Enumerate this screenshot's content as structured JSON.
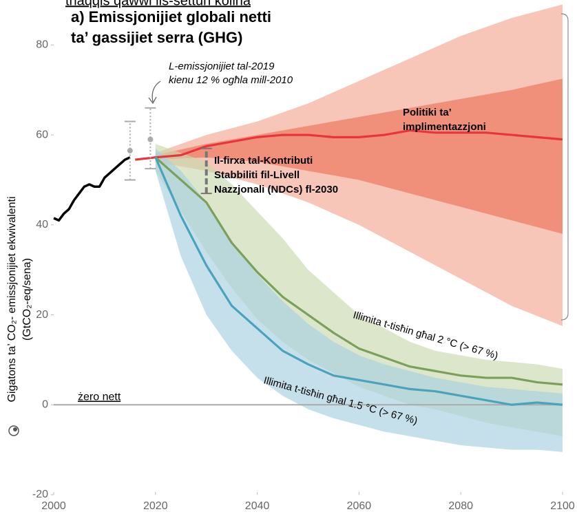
{
  "chart_data": {
    "type": "line",
    "supertitle": "thaqqis qawwi lis-settun kollha",
    "title": [
      "a) Emissjonijiet globali netti",
      "ta’ gassijiet serra (GHG)"
    ],
    "ylabel": [
      "Gigatons ta’ CO₂- emissjonijiet ekwivalenti",
      "(GtCO₂-eq/sena)"
    ],
    "xlim": [
      2000,
      2100
    ],
    "ylim": [
      -20,
      90
    ],
    "xticks": [
      2000,
      2020,
      2040,
      2060,
      2080,
      2100
    ],
    "yticks": [
      -20,
      0,
      20,
      40,
      60,
      80
    ],
    "hline": {
      "value": 0,
      "label": "żero nett",
      "color": "#aaaaaa"
    },
    "bands": [
      {
        "color": "#f6c0b0",
        "x": [
          2020,
          2030,
          2040,
          2050,
          2060,
          2070,
          2080,
          2090,
          2100
        ],
        "lower": [
          54,
          52,
          49,
          45,
          40,
          34,
          28,
          22,
          17.5
        ],
        "upper": [
          56,
          60,
          63,
          67,
          72,
          77,
          82,
          86,
          89
        ]
      },
      {
        "color": "#ef8a73",
        "x": [
          2020,
          2030,
          2040,
          2050,
          2060,
          2070,
          2080,
          2090,
          2100
        ],
        "lower": [
          54.5,
          55,
          54,
          52,
          50,
          47,
          44,
          41,
          38
        ],
        "upper": [
          55.5,
          58,
          60,
          62,
          64,
          66,
          68,
          70,
          72.5
        ]
      },
      {
        "color": "#c9d9ae",
        "x": [
          2020,
          2025,
          2030,
          2035,
          2040,
          2045,
          2050,
          2055,
          2060,
          2065,
          2070,
          2075,
          2080,
          2085,
          2090,
          2095,
          2100
        ],
        "lower": [
          52,
          43,
          34,
          26,
          19,
          14,
          10,
          7,
          4,
          2,
          0,
          -1,
          -2.5,
          -4,
          -5,
          -6,
          -7
        ],
        "upper": [
          58,
          56,
          54,
          49,
          43,
          37,
          30,
          25,
          20,
          17,
          14,
          12,
          11,
          10,
          9.5,
          9,
          8
        ]
      },
      {
        "color": "#a8cfe0",
        "x": [
          2020,
          2025,
          2030,
          2035,
          2040,
          2045,
          2050,
          2055,
          2060,
          2065,
          2070,
          2075,
          2080,
          2085,
          2090,
          2095,
          2100
        ],
        "lower": [
          52,
          33,
          20,
          12,
          6,
          2,
          -1,
          -3,
          -4.5,
          -6,
          -7,
          -8,
          -9,
          -9.5,
          -10,
          -10,
          -10.5
        ],
        "upper": [
          57,
          52,
          45,
          36,
          29,
          23,
          18,
          14,
          11,
          9,
          7.5,
          6,
          5,
          4,
          3.5,
          3,
          2.5
        ]
      }
    ],
    "series": [
      {
        "color": "#000000",
        "x": [
          2000,
          2001,
          2002,
          2003,
          2004,
          2005,
          2006,
          2007,
          2008,
          2009,
          2010,
          2011,
          2012,
          2013,
          2014,
          2015
        ],
        "values": [
          41.5,
          41,
          42.5,
          43.5,
          45.5,
          47,
          48.5,
          49,
          48.5,
          48.5,
          50.5,
          51.5,
          52.5,
          53.5,
          54.5,
          55
        ]
      },
      {
        "color": "#e8343a",
        "x": [
          2016,
          2020,
          2025,
          2030,
          2035,
          2040,
          2045,
          2050,
          2055,
          2060,
          2065,
          2070,
          2075,
          2080,
          2085,
          2090,
          2095,
          2100
        ],
        "values": [
          54.5,
          55,
          55.5,
          57.5,
          58.5,
          59.5,
          60,
          60,
          59.5,
          59.5,
          60,
          61,
          60.5,
          60.5,
          60.5,
          60,
          59.5,
          59
        ]
      },
      {
        "color": "#7ba05b",
        "x": [
          2020,
          2025,
          2030,
          2035,
          2040,
          2045,
          2050,
          2055,
          2060,
          2065,
          2070,
          2075,
          2080,
          2085,
          2090,
          2095,
          2100
        ],
        "values": [
          55,
          50,
          45,
          36,
          29.5,
          24,
          20,
          16,
          12.5,
          10.5,
          8.5,
          7.5,
          6.5,
          6,
          6,
          5,
          4.5
        ]
      },
      {
        "color": "#4aa3bd",
        "x": [
          2020,
          2025,
          2030,
          2035,
          2040,
          2045,
          2050,
          2055,
          2060,
          2065,
          2070,
          2075,
          2080,
          2085,
          2090,
          2095,
          2100
        ],
        "values": [
          55,
          42,
          31,
          22,
          17,
          12,
          9,
          6.5,
          5.5,
          4.5,
          3.5,
          3,
          2,
          1,
          0,
          0.5,
          0
        ]
      }
    ],
    "error_bars": [
      {
        "x": 2015,
        "y": 56.5,
        "low": 50,
        "high": 63,
        "color": "#aaaaaa"
      },
      {
        "x": 2019,
        "y": 59,
        "low": 52.5,
        "high": 66,
        "color": "#aaaaaa"
      },
      {
        "x": 2030,
        "low": 47,
        "high": 57,
        "color": "#777777"
      }
    ],
    "annotations": [
      {
        "lines": [
          "L-emissjonijiet tal-2019",
          "kienu 12 % ogħla mill-2010"
        ],
        "style": "italic"
      },
      {
        "lines": [
          "Politiki ta’",
          "implimentazzjoni"
        ],
        "style": "bold"
      },
      {
        "lines": [
          "Il-firxa tal-Kontributi",
          "Stabbiliti fil-Livell",
          "Nazzjonali (NDCs) fl-2030"
        ],
        "style": "bold"
      },
      {
        "lines": [
          "Illimita t-tisħin għal 2 °C (> 67 %)"
        ],
        "style": "rotated"
      },
      {
        "lines": [
          "Illimita t-tisħin għal 1.5 °C (> 67 %)"
        ],
        "style": "rotated"
      }
    ]
  }
}
